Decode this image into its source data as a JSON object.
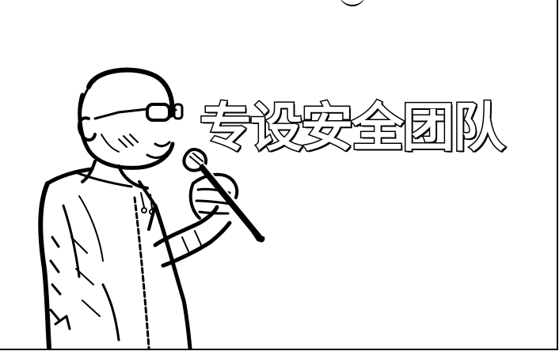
{
  "banner": {
    "text": "专设安全团队"
  },
  "colors": {
    "ink": "#000000",
    "paper": "#ffffff"
  },
  "scene": {
    "subject": "speaker-holding-microphone-icon"
  }
}
